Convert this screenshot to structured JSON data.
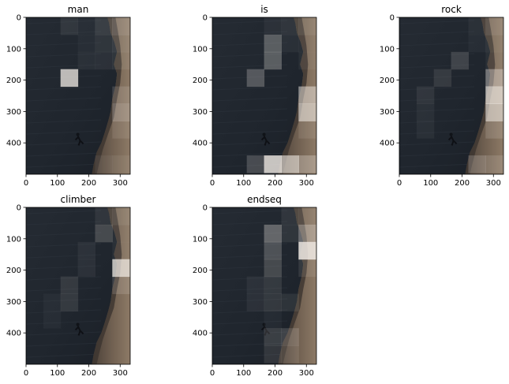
{
  "figure": {
    "type": "attention-heatmap-grid",
    "description_units": "image pixel coordinates",
    "xlim": [
      0,
      332
    ],
    "ylim": [
      500,
      0
    ],
    "xticks": [
      0,
      100,
      200,
      300
    ],
    "yticks": [
      0,
      100,
      200,
      300,
      400
    ],
    "background_colors": {
      "sea_dark": "#1c2128",
      "sea_mid": "#2a3038",
      "cliff_dark": "#3b342e",
      "cliff_light": "#8d7a66",
      "highlight": "#f2ece6"
    },
    "cell_size": 55,
    "rows": 9,
    "cols": 6
  },
  "chart_data": [
    {
      "type": "heatmap",
      "title": "man",
      "overlay": [
        [
          0,
          0,
          0.08,
          0.04,
          0.12,
          0.2
        ],
        [
          0,
          0,
          0,
          0.04,
          0.08,
          0.12
        ],
        [
          0,
          0,
          0,
          0.05,
          0.06,
          0.08
        ],
        [
          0,
          0,
          0.75,
          0,
          0,
          0
        ],
        [
          0,
          0,
          0,
          0,
          0,
          0.15
        ],
        [
          0,
          0,
          0,
          0,
          0,
          0.25
        ],
        [
          0,
          0,
          0,
          0,
          0,
          0.1
        ],
        [
          0,
          0,
          0,
          0,
          0,
          0
        ],
        [
          0,
          0,
          0,
          0,
          0.06,
          0.08
        ]
      ]
    },
    {
      "type": "heatmap",
      "title": "is",
      "overlay": [
        [
          0,
          0,
          0,
          0.05,
          0.08,
          0.12
        ],
        [
          0,
          0,
          0,
          0.28,
          0.05,
          0.05
        ],
        [
          0,
          0,
          0,
          0.28,
          0,
          0.05
        ],
        [
          0,
          0,
          0.25,
          0,
          0,
          0
        ],
        [
          0,
          0,
          0,
          0,
          0,
          0.5
        ],
        [
          0,
          0,
          0,
          0,
          0,
          0.6
        ],
        [
          0,
          0,
          0,
          0,
          0,
          0.1
        ],
        [
          0,
          0,
          0,
          0,
          0,
          0
        ],
        [
          0,
          0,
          0.2,
          0.8,
          0.6,
          0.3
        ]
      ]
    },
    {
      "type": "heatmap",
      "title": "rock",
      "overlay": [
        [
          0,
          0,
          0,
          0,
          0.05,
          0.15
        ],
        [
          0,
          0,
          0,
          0,
          0.04,
          0.08
        ],
        [
          0,
          0,
          0,
          0.15,
          0,
          0.05
        ],
        [
          0,
          0,
          0.1,
          0,
          0,
          0.4
        ],
        [
          0,
          0.08,
          0,
          0,
          0,
          0.7
        ],
        [
          0,
          0.05,
          0,
          0,
          0,
          0.6
        ],
        [
          0,
          0.05,
          0,
          0,
          0,
          0.15
        ],
        [
          0,
          0,
          0,
          0,
          0,
          0
        ],
        [
          0,
          0,
          0,
          0,
          0.2,
          0.15
        ]
      ]
    },
    {
      "type": "heatmap",
      "title": "climber",
      "overlay": [
        [
          0,
          0,
          0,
          0,
          0.08,
          0.12
        ],
        [
          0,
          0,
          0,
          0,
          0.18,
          0.05
        ],
        [
          0,
          0,
          0,
          0.06,
          0,
          0.05
        ],
        [
          0,
          0,
          0,
          0.06,
          0,
          0.75
        ],
        [
          0,
          0,
          0.1,
          0,
          0,
          0.15
        ],
        [
          0,
          0.04,
          0.1,
          0,
          0,
          0
        ],
        [
          0,
          0.04,
          0,
          0,
          0,
          0
        ],
        [
          0,
          0,
          0,
          0,
          0,
          0
        ],
        [
          0,
          0,
          0,
          0,
          0,
          0
        ]
      ]
    },
    {
      "type": "heatmap",
      "title": "endseq",
      "overlay": [
        [
          0,
          0,
          0,
          0,
          0.08,
          0.1
        ],
        [
          0,
          0,
          0,
          0.32,
          0.08,
          0.35
        ],
        [
          0,
          0,
          0,
          0.22,
          0,
          0.85
        ],
        [
          0,
          0,
          0,
          0.18,
          0,
          0.1
        ],
        [
          0,
          0,
          0.06,
          0.1,
          0,
          0
        ],
        [
          0,
          0,
          0.06,
          0.1,
          0.08,
          0
        ],
        [
          0,
          0,
          0,
          0.04,
          0,
          0
        ],
        [
          0,
          0,
          0,
          0.14,
          0.16,
          0
        ],
        [
          0,
          0,
          0,
          0.1,
          0.1,
          0
        ]
      ]
    }
  ]
}
